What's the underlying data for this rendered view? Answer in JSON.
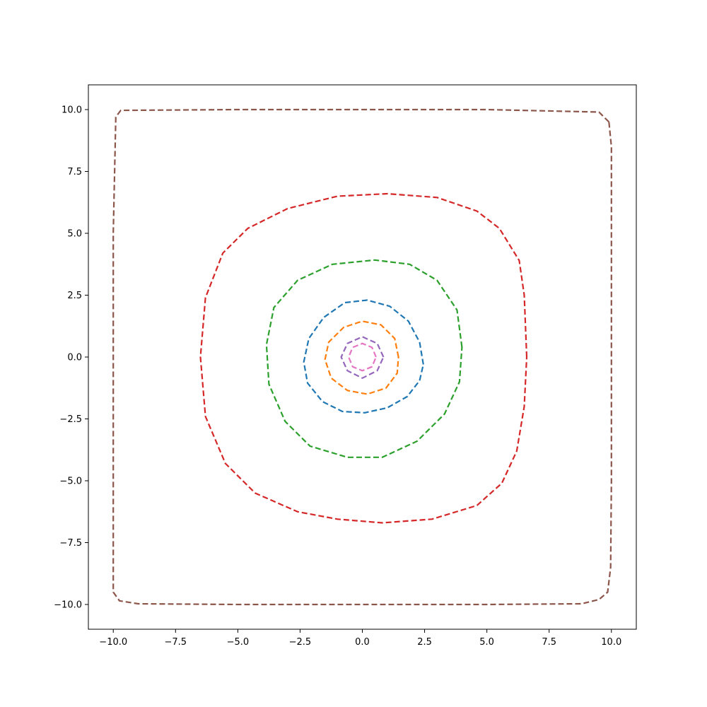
{
  "chart_data": {
    "type": "line",
    "title": "",
    "xlabel": "",
    "ylabel": "",
    "xlim": [
      -11,
      11
    ],
    "ylim": [
      -11,
      11
    ],
    "grid": false,
    "line_style": "dashed",
    "x_ticks": [
      -10.0,
      -7.5,
      -5.0,
      -2.5,
      0.0,
      2.5,
      5.0,
      7.5,
      10.0
    ],
    "x_tick_labels": [
      "−10.0",
      "−7.5",
      "−5.0",
      "−2.5",
      "0.0",
      "2.5",
      "5.0",
      "7.5",
      "10.0"
    ],
    "y_ticks": [
      -10.0,
      -7.5,
      -5.0,
      -2.5,
      0.0,
      2.5,
      5.0,
      7.5,
      10.0
    ],
    "y_tick_labels": [
      "−10.0",
      "−7.5",
      "−5.0",
      "−2.5",
      "0.0",
      "2.5",
      "5.0",
      "7.5",
      "10.0"
    ],
    "series": [
      {
        "color": "#1f77b4",
        "points": [
          [
            2.45,
            -0.3
          ],
          [
            2.3,
            0.6
          ],
          [
            1.85,
            1.45
          ],
          [
            1.1,
            2.05
          ],
          [
            0.2,
            2.3
          ],
          [
            -0.7,
            2.2
          ],
          [
            -1.55,
            1.6
          ],
          [
            -2.15,
            0.75
          ],
          [
            -2.35,
            -0.2
          ],
          [
            -2.2,
            -1.05
          ],
          [
            -1.6,
            -1.8
          ],
          [
            -0.8,
            -2.2
          ],
          [
            0.1,
            -2.25
          ],
          [
            1.0,
            -2.05
          ],
          [
            1.8,
            -1.6
          ],
          [
            2.3,
            -0.95
          ],
          [
            2.45,
            -0.3
          ]
        ]
      },
      {
        "color": "#ff7f0e",
        "points": [
          [
            1.45,
            0.0
          ],
          [
            1.3,
            0.75
          ],
          [
            0.75,
            1.3
          ],
          [
            0.0,
            1.45
          ],
          [
            -0.75,
            1.2
          ],
          [
            -1.35,
            0.6
          ],
          [
            -1.5,
            -0.1
          ],
          [
            -1.25,
            -0.85
          ],
          [
            -0.6,
            -1.35
          ],
          [
            0.2,
            -1.5
          ],
          [
            0.95,
            -1.25
          ],
          [
            1.4,
            -0.65
          ],
          [
            1.45,
            0.0
          ]
        ]
      },
      {
        "color": "#2ca02c",
        "points": [
          [
            4.0,
            0.4
          ],
          [
            3.8,
            1.9
          ],
          [
            3.0,
            3.1
          ],
          [
            1.9,
            3.75
          ],
          [
            0.5,
            3.92
          ],
          [
            -1.2,
            3.75
          ],
          [
            -2.6,
            3.1
          ],
          [
            -3.55,
            2.0
          ],
          [
            -3.85,
            0.5
          ],
          [
            -3.75,
            -1.1
          ],
          [
            -3.1,
            -2.6
          ],
          [
            -2.1,
            -3.6
          ],
          [
            -0.6,
            -4.05
          ],
          [
            0.8,
            -4.05
          ],
          [
            2.2,
            -3.4
          ],
          [
            3.3,
            -2.3
          ],
          [
            3.9,
            -1.0
          ],
          [
            4.0,
            0.4
          ]
        ]
      },
      {
        "color": "#d62728",
        "points": [
          [
            6.6,
            0.0
          ],
          [
            6.5,
            2.5
          ],
          [
            6.3,
            3.9
          ],
          [
            5.5,
            5.2
          ],
          [
            4.6,
            5.9
          ],
          [
            3.0,
            6.45
          ],
          [
            1.0,
            6.6
          ],
          [
            -1.0,
            6.5
          ],
          [
            -3.0,
            6.0
          ],
          [
            -4.6,
            5.2
          ],
          [
            -5.6,
            4.2
          ],
          [
            -6.3,
            2.4
          ],
          [
            -6.5,
            0.0
          ],
          [
            -6.3,
            -2.4
          ],
          [
            -5.5,
            -4.3
          ],
          [
            -4.3,
            -5.5
          ],
          [
            -2.6,
            -6.25
          ],
          [
            -1.0,
            -6.55
          ],
          [
            0.8,
            -6.7
          ],
          [
            2.8,
            -6.55
          ],
          [
            4.6,
            -6.0
          ],
          [
            5.6,
            -5.1
          ],
          [
            6.2,
            -3.8
          ],
          [
            6.5,
            -2.0
          ],
          [
            6.6,
            0.0
          ]
        ]
      },
      {
        "color": "#9467bd",
        "points": [
          [
            0.85,
            0.0
          ],
          [
            0.6,
            0.55
          ],
          [
            0.0,
            0.82
          ],
          [
            -0.6,
            0.55
          ],
          [
            -0.85,
            0.0
          ],
          [
            -0.6,
            -0.55
          ],
          [
            0.0,
            -0.85
          ],
          [
            0.6,
            -0.55
          ],
          [
            0.85,
            0.0
          ]
        ]
      },
      {
        "color": "#8c564b",
        "points": [
          [
            9.9,
            9.5
          ],
          [
            9.5,
            9.9
          ],
          [
            5.0,
            10.0
          ],
          [
            0.0,
            10.0
          ],
          [
            -5.0,
            10.0
          ],
          [
            -9.7,
            9.97
          ],
          [
            -9.9,
            9.7
          ],
          [
            -10.0,
            5.0
          ],
          [
            -10.0,
            0.0
          ],
          [
            -10.0,
            -5.0
          ],
          [
            -10.0,
            -9.5
          ],
          [
            -9.75,
            -9.85
          ],
          [
            -9.0,
            -9.97
          ],
          [
            -5.0,
            -10.0
          ],
          [
            0.0,
            -10.0
          ],
          [
            5.0,
            -10.0
          ],
          [
            8.8,
            -9.97
          ],
          [
            9.5,
            -9.8
          ],
          [
            9.85,
            -9.5
          ],
          [
            9.97,
            -8.5
          ],
          [
            10.0,
            -5.0
          ],
          [
            10.0,
            0.0
          ],
          [
            10.0,
            5.0
          ],
          [
            10.0,
            8.5
          ],
          [
            9.9,
            9.5
          ]
        ]
      },
      {
        "color": "#e377c2",
        "points": [
          [
            0.55,
            0.0
          ],
          [
            0.39,
            0.39
          ],
          [
            0.0,
            0.55
          ],
          [
            -0.39,
            0.39
          ],
          [
            -0.55,
            0.0
          ],
          [
            -0.39,
            -0.39
          ],
          [
            0.0,
            -0.55
          ],
          [
            0.39,
            -0.39
          ],
          [
            0.55,
            0.0
          ]
        ]
      }
    ]
  }
}
